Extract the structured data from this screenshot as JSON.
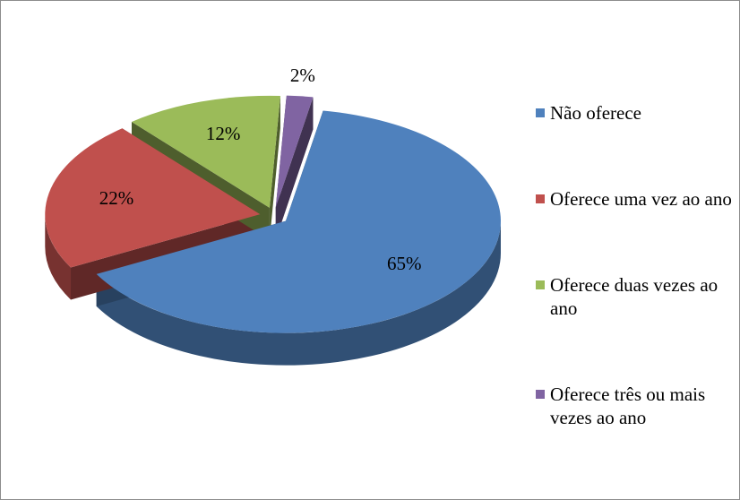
{
  "chart_data": {
    "type": "pie3d",
    "categories": [
      "Não oferece",
      "Oferece uma vez ao ano",
      "Oferece duas vezes ao ano",
      "Oferece três ou mais vezes ao ano"
    ],
    "values": [
      65,
      22,
      12,
      2
    ],
    "value_labels": [
      "65%",
      "22%",
      "12%",
      "2%"
    ],
    "colors": [
      "#4f81bd",
      "#c0504d",
      "#9bbb59",
      "#8064a2"
    ],
    "legend": "right"
  }
}
